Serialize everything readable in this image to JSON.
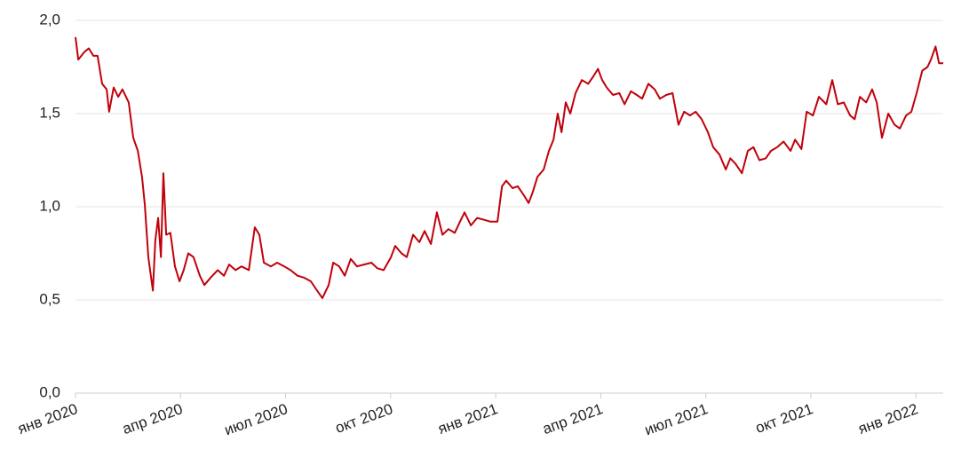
{
  "chart_data": {
    "type": "line",
    "x": [
      0,
      0.08,
      0.25,
      0.38,
      0.51,
      0.63,
      0.76,
      0.89,
      0.96,
      1.09,
      1.22,
      1.34,
      1.52,
      1.65,
      1.78,
      1.9,
      1.98,
      2.08,
      2.21,
      2.28,
      2.36,
      2.44,
      2.51,
      2.59,
      2.71,
      2.84,
      2.97,
      3.09,
      3.22,
      3.37,
      3.55,
      3.68,
      3.86,
      4.06,
      4.24,
      4.39,
      4.57,
      4.74,
      4.95,
      5.12,
      5.25,
      5.38,
      5.58,
      5.76,
      5.96,
      6.14,
      6.34,
      6.52,
      6.72,
      6.9,
      7.05,
      7.23,
      7.36,
      7.53,
      7.69,
      7.86,
      8.04,
      8.24,
      8.45,
      8.62,
      8.8,
      9.01,
      9.13,
      9.31,
      9.46,
      9.64,
      9.82,
      9.97,
      10.15,
      10.32,
      10.48,
      10.65,
      10.83,
      10.98,
      11.11,
      11.29,
      11.47,
      11.67,
      11.85,
      12.05,
      12.18,
      12.3,
      12.48,
      12.63,
      12.81,
      12.94,
      13.06,
      13.19,
      13.37,
      13.52,
      13.65,
      13.77,
      13.88,
      14,
      14.13,
      14.28,
      14.46,
      14.64,
      14.79,
      14.92,
      15.04,
      15.17,
      15.35,
      15.53,
      15.68,
      15.86,
      16.03,
      16.18,
      16.36,
      16.54,
      16.69,
      16.87,
      17.05,
      17.22,
      17.38,
      17.55,
      17.71,
      17.88,
      18.06,
      18.21,
      18.39,
      18.57,
      18.7,
      18.85,
      19.03,
      19.2,
      19.36,
      19.53,
      19.71,
      19.86,
      20.04,
      20.22,
      20.42,
      20.55,
      20.73,
      20.88,
      21.06,
      21.23,
      21.44,
      21.61,
      21.77,
      21.94,
      22.12,
      22.25,
      22.4,
      22.58,
      22.75,
      22.88,
      23.03,
      23.21,
      23.39,
      23.54,
      23.72,
      23.87,
      24.02,
      24.18,
      24.33,
      24.43,
      24.56,
      24.66,
      24.78
    ],
    "series": [
      {
        "color": "#c0000b",
        "values": [
          1.91,
          1.79,
          1.83,
          1.85,
          1.81,
          1.81,
          1.66,
          1.63,
          1.51,
          1.64,
          1.59,
          1.63,
          1.56,
          1.37,
          1.3,
          1.16,
          1.01,
          0.73,
          0.55,
          0.82,
          0.94,
          0.73,
          1.18,
          0.85,
          0.86,
          0.68,
          0.6,
          0.66,
          0.75,
          0.73,
          0.63,
          0.58,
          0.62,
          0.66,
          0.63,
          0.69,
          0.66,
          0.68,
          0.66,
          0.89,
          0.85,
          0.7,
          0.68,
          0.7,
          0.68,
          0.66,
          0.63,
          0.62,
          0.6,
          0.55,
          0.51,
          0.58,
          0.7,
          0.68,
          0.63,
          0.72,
          0.68,
          0.69,
          0.7,
          0.67,
          0.66,
          0.73,
          0.79,
          0.75,
          0.73,
          0.85,
          0.81,
          0.87,
          0.8,
          0.97,
          0.85,
          0.88,
          0.86,
          0.92,
          0.97,
          0.9,
          0.94,
          0.93,
          0.92,
          0.92,
          1.11,
          1.14,
          1.1,
          1.11,
          1.06,
          1.02,
          1.08,
          1.16,
          1.2,
          1.3,
          1.36,
          1.5,
          1.4,
          1.56,
          1.5,
          1.61,
          1.68,
          1.66,
          1.7,
          1.74,
          1.68,
          1.64,
          1.6,
          1.61,
          1.55,
          1.62,
          1.6,
          1.58,
          1.66,
          1.63,
          1.58,
          1.6,
          1.61,
          1.44,
          1.51,
          1.49,
          1.51,
          1.47,
          1.4,
          1.32,
          1.28,
          1.2,
          1.26,
          1.23,
          1.18,
          1.3,
          1.32,
          1.25,
          1.26,
          1.3,
          1.32,
          1.35,
          1.3,
          1.36,
          1.31,
          1.51,
          1.49,
          1.59,
          1.55,
          1.68,
          1.55,
          1.56,
          1.49,
          1.47,
          1.59,
          1.56,
          1.63,
          1.56,
          1.37,
          1.5,
          1.44,
          1.42,
          1.49,
          1.51,
          1.61,
          1.73,
          1.75,
          1.79,
          1.86,
          1.77,
          1.77
        ]
      }
    ],
    "xlim": [
      0,
      24.78
    ],
    "xticks": [
      {
        "value": 0,
        "label": "янв 2020"
      },
      {
        "value": 3,
        "label": "апр 2020"
      },
      {
        "value": 6,
        "label": "июл 2020"
      },
      {
        "value": 9,
        "label": "окт 2020"
      },
      {
        "value": 12,
        "label": "янв 2021"
      },
      {
        "value": 15,
        "label": "апр 2021"
      },
      {
        "value": 18,
        "label": "июл 2021"
      },
      {
        "value": 21,
        "label": "окт 2021"
      },
      {
        "value": 24,
        "label": "янв 2022"
      }
    ],
    "ylim": [
      0,
      2
    ],
    "yticks": [
      {
        "value": 0,
        "label": "0,0"
      },
      {
        "value": 0.5,
        "label": "0,5"
      },
      {
        "value": 1,
        "label": "1,0"
      },
      {
        "value": 1.5,
        "label": "1,5"
      },
      {
        "value": 2,
        "label": "2,0"
      }
    ],
    "grid": true
  }
}
